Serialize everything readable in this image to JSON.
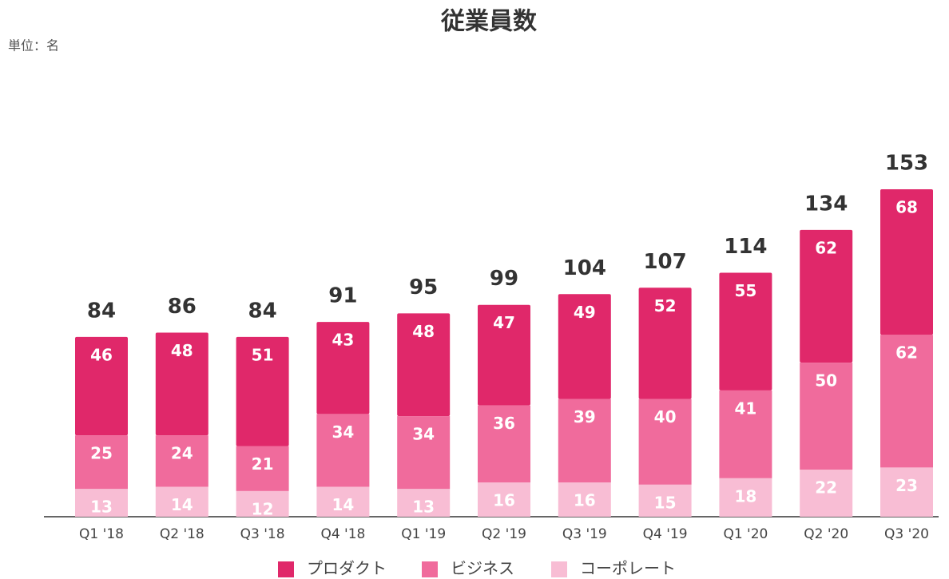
{
  "chart_data": {
    "type": "stacked_bar",
    "title": "従業員数",
    "unit_label": "単位：名",
    "categories": [
      "Q1 '18",
      "Q2 '18",
      "Q3 '18",
      "Q4 '18",
      "Q1 '19",
      "Q2 '19",
      "Q3 '19",
      "Q4 '19",
      "Q1 '20",
      "Q2 '20",
      "Q3 '20"
    ],
    "series": [
      {
        "name": "プロダクト",
        "color": "#e0286a",
        "values": [
          46,
          48,
          51,
          43,
          48,
          47,
          49,
          52,
          55,
          62,
          68
        ]
      },
      {
        "name": "ビジネス",
        "color": "#f06b9c",
        "values": [
          25,
          24,
          21,
          34,
          34,
          36,
          39,
          40,
          41,
          50,
          62
        ]
      },
      {
        "name": "コーポレート",
        "color": "#f8bdd4",
        "values": [
          13,
          14,
          12,
          14,
          13,
          16,
          16,
          15,
          18,
          22,
          23
        ]
      }
    ],
    "totals": [
      84,
      86,
      84,
      91,
      95,
      99,
      104,
      107,
      114,
      134,
      153
    ]
  }
}
